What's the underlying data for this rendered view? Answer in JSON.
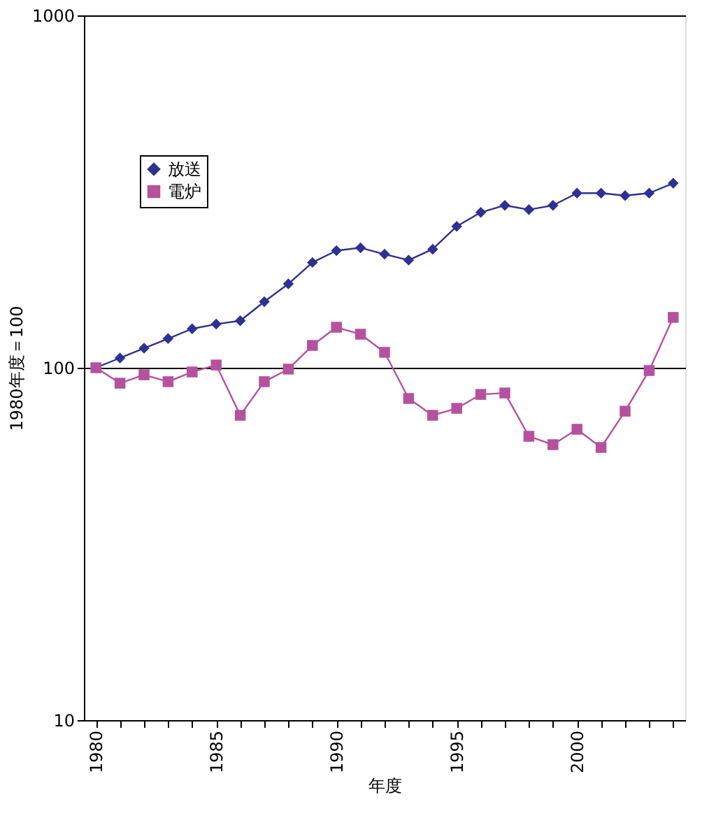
{
  "chart_data": {
    "type": "line",
    "xlabel": "年度",
    "ylabel": "1980年度＝100",
    "categories": [
      "1980",
      null,
      null,
      null,
      null,
      "1985",
      null,
      null,
      null,
      null,
      "1990",
      null,
      null,
      null,
      null,
      "1995",
      null,
      null,
      null,
      null,
      "2000",
      null,
      null,
      null,
      null
    ],
    "series": [
      {
        "name": "放送",
        "color": "#2e3192",
        "marker": "diamond",
        "values": [
          100,
          106.6,
          113.6,
          121,
          129,
          133,
          136,
          154,
          173,
          199,
          215,
          219,
          210,
          202,
          217,
          252,
          276,
          289,
          281,
          289,
          313,
          313,
          308,
          313,
          334
        ]
      },
      {
        "name": "電炉",
        "color": "#b5519e",
        "marker": "square",
        "values": [
          100,
          90.4,
          95.5,
          91.3,
          97.3,
          101.8,
          73.3,
          91.3,
          99.1,
          115.7,
          130.3,
          124.5,
          110.6,
          81.8,
          73.3,
          76.7,
          84.0,
          84.8,
          63.9,
          60.5,
          66.9,
          59.4,
          75.3,
          98.2,
          139
        ]
      }
    ],
    "log": true,
    "ylim": [
      10,
      1000
    ],
    "yticks": [
      10,
      100,
      1000
    ],
    "grid": "y",
    "legend": "top left",
    "line_style": "solid"
  }
}
